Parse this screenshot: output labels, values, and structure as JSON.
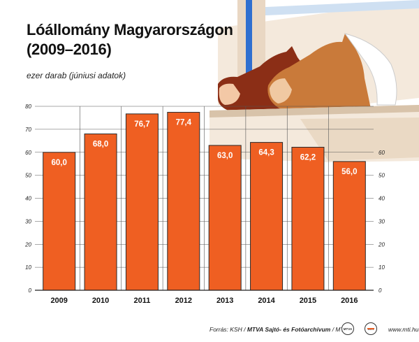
{
  "title_line1": "Lóállomány Magyarországon",
  "title_line2": "(2009–2016)",
  "unit_label": "ezer darab (júniusi adatok)",
  "colors": {
    "bar": "#ef5f22",
    "bar_stroke": "#2a2a2a",
    "axis": "#222222",
    "grid": "#555555"
  },
  "footer": {
    "prefix": "Forrás: KSH / ",
    "source": "MTVA Sajtó- és Fotóarchívum",
    "suffix": " / MTI",
    "site": "www.mti.hu",
    "logo_mtva": "MTVA",
    "logo_mti": "MTI"
  },
  "chart_data": {
    "type": "bar",
    "categories": [
      "2009",
      "2010",
      "2011",
      "2012",
      "2013",
      "2014",
      "2015",
      "2016"
    ],
    "values": [
      60.0,
      68.0,
      76.7,
      77.4,
      63.0,
      64.3,
      62.2,
      56.0
    ],
    "value_labels": [
      "60,0",
      "68,0",
      "76,7",
      "77,4",
      "63,0",
      "64,3",
      "62,2",
      "56,0"
    ],
    "left_ticks": [
      0,
      10,
      20,
      30,
      40,
      50,
      60,
      70,
      80
    ],
    "right_ticks": [
      0,
      10,
      20,
      30,
      40,
      50,
      60
    ],
    "ylim": [
      0,
      80
    ],
    "title": "Lóállomány Magyarországon (2009–2016)",
    "ylabel": "ezer darab (júniusi adatok)",
    "xlabel": "",
    "grid": true
  }
}
